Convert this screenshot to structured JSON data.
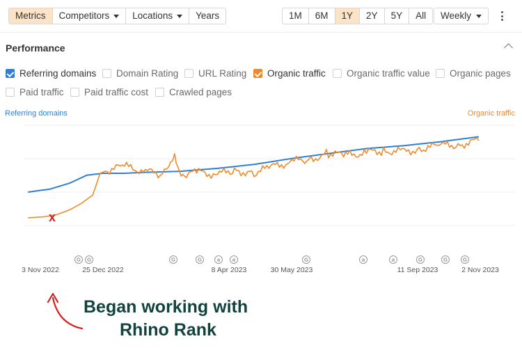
{
  "toolbar": {
    "metrics": "Metrics",
    "competitors": "Competitors",
    "locations": "Locations",
    "years": "Years",
    "ranges": [
      "1M",
      "6M",
      "1Y",
      "2Y",
      "5Y",
      "All"
    ],
    "active_range": "1Y",
    "interval": "Weekly"
  },
  "performance": {
    "title": "Performance",
    "metrics": [
      {
        "label": "Referring domains",
        "checked": true,
        "color": "#2f7fd4"
      },
      {
        "label": "Domain Rating",
        "checked": false
      },
      {
        "label": "URL Rating",
        "checked": false
      },
      {
        "label": "Organic traffic",
        "checked": true,
        "color": "#f0892b"
      },
      {
        "label": "Organic traffic value",
        "checked": false
      },
      {
        "label": "Organic pages",
        "checked": false
      },
      {
        "label": "Paid traffic",
        "checked": false
      },
      {
        "label": "Paid traffic cost",
        "checked": false
      },
      {
        "label": "Crawled pages",
        "checked": false
      }
    ]
  },
  "chart_data": {
    "type": "line",
    "left_axis_label": "Referring domains",
    "right_axis_label": "Organic traffic",
    "x_tick_labels": [
      "3 Nov 2022",
      "25 Dec 2022",
      "8 Apr 2023",
      "30 May 2023",
      "11 Sep 2023",
      "2 Nov 2023"
    ],
    "x_range": [
      "2022-10-25",
      "2023-11-05"
    ],
    "y_scale": "relative (no tick values shown)",
    "grid": true,
    "series": [
      {
        "name": "Referring domains",
        "color": "#2f7fd4",
        "x": [
          "2022-10-28",
          "2022-11-15",
          "2022-12-01",
          "2022-12-15",
          "2022-12-28",
          "2023-01-15",
          "2023-02-01",
          "2023-03-01",
          "2023-04-01",
          "2023-05-01",
          "2023-06-01",
          "2023-07-01",
          "2023-08-01",
          "2023-09-01",
          "2023-10-01",
          "2023-11-01"
        ],
        "values": [
          0.31,
          0.34,
          0.4,
          0.48,
          0.5,
          0.5,
          0.51,
          0.52,
          0.55,
          0.59,
          0.65,
          0.7,
          0.75,
          0.78,
          0.82,
          0.87
        ]
      },
      {
        "name": "Organic traffic",
        "color": "#f0892b",
        "x": [
          "2022-10-28",
          "2022-11-10",
          "2022-11-20",
          "2022-12-01",
          "2022-12-10",
          "2022-12-20",
          "2022-12-26",
          "2023-01-01",
          "2023-01-15",
          "2023-02-01",
          "2023-02-15",
          "2023-02-25",
          "2023-03-01",
          "2023-03-05",
          "2023-03-15",
          "2023-04-01",
          "2023-04-15",
          "2023-05-01",
          "2023-05-15",
          "2023-06-01",
          "2023-06-15",
          "2023-07-01",
          "2023-07-15",
          "2023-08-01",
          "2023-08-15",
          "2023-09-01",
          "2023-09-15",
          "2023-10-01",
          "2023-10-15",
          "2023-11-01"
        ],
        "values": [
          0.05,
          0.06,
          0.08,
          0.13,
          0.19,
          0.28,
          0.5,
          0.53,
          0.57,
          0.52,
          0.49,
          0.7,
          0.53,
          0.48,
          0.51,
          0.49,
          0.53,
          0.5,
          0.56,
          0.62,
          0.64,
          0.7,
          0.68,
          0.71,
          0.73,
          0.72,
          0.75,
          0.78,
          0.79,
          0.83
        ]
      }
    ],
    "event_markers": [
      "G",
      "G",
      "G",
      "G",
      "a",
      "a",
      "G",
      "a",
      "a",
      "G",
      "G",
      "G"
    ],
    "annotation_marker": "x"
  },
  "annotation": {
    "line1": "Began working with",
    "line2": "Rhino Rank"
  }
}
